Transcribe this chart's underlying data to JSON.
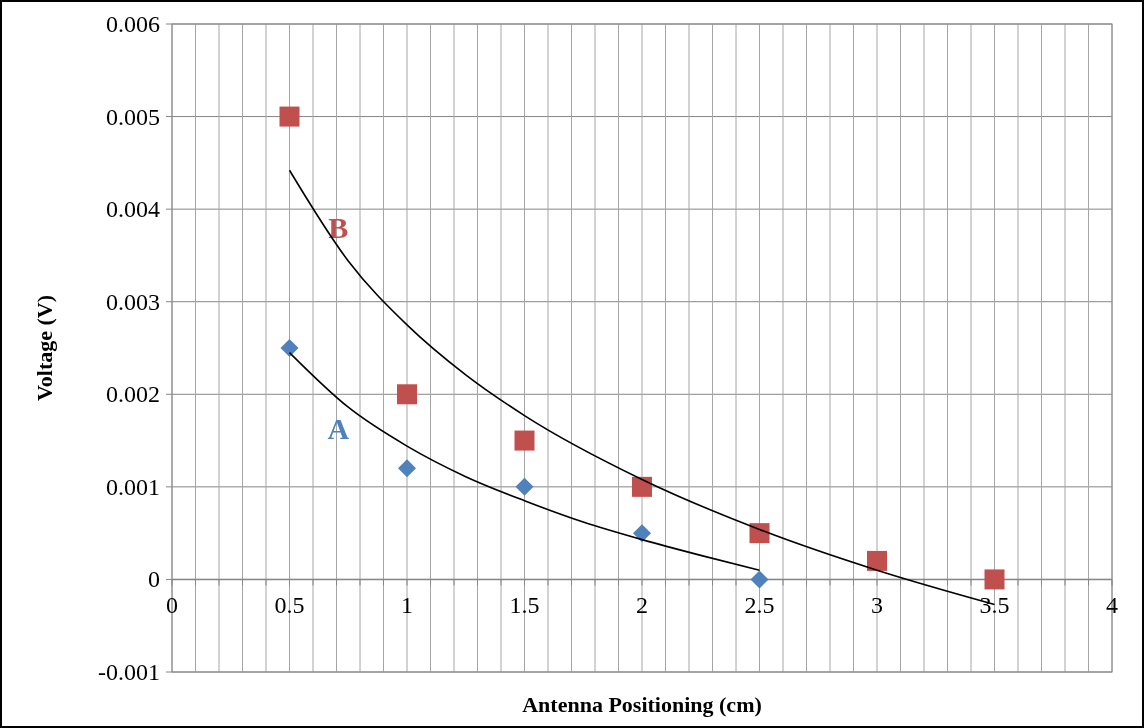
{
  "chart_data": {
    "type": "scatter",
    "xlabel": "Antenna Positioning (cm)",
    "ylabel": "Voltage (V)",
    "xlim": [
      0,
      4
    ],
    "ylim": [
      -0.001,
      0.006
    ],
    "xticks": [
      0,
      {
        "value": 0.1,
        "label": null
      },
      {
        "value": 0.2,
        "label": null
      },
      {
        "value": 0.3,
        "label": null
      },
      {
        "value": 0.4,
        "label": null
      },
      0.5,
      {
        "value": 0.6,
        "label": null
      },
      {
        "value": 0.7,
        "label": null
      },
      {
        "value": 0.8,
        "label": null
      },
      {
        "value": 0.9,
        "label": null
      },
      1,
      {
        "value": 1.1,
        "label": null
      },
      {
        "value": 1.2,
        "label": null
      },
      {
        "value": 1.3,
        "label": null
      },
      {
        "value": 1.4,
        "label": null
      },
      1.5,
      {
        "value": 1.6,
        "label": null
      },
      {
        "value": 1.7,
        "label": null
      },
      {
        "value": 1.8,
        "label": null
      },
      {
        "value": 1.9,
        "label": null
      },
      2,
      {
        "value": 2.1,
        "label": null
      },
      {
        "value": 2.2,
        "label": null
      },
      {
        "value": 2.3,
        "label": null
      },
      {
        "value": 2.4,
        "label": null
      },
      2.5,
      {
        "value": 2.6,
        "label": null
      },
      {
        "value": 2.7,
        "label": null
      },
      {
        "value": 2.8,
        "label": null
      },
      {
        "value": 2.9,
        "label": null
      },
      3,
      {
        "value": 3.1,
        "label": null
      },
      {
        "value": 3.2,
        "label": null
      },
      {
        "value": 3.3,
        "label": null
      },
      {
        "value": 3.4,
        "label": null
      },
      3.5,
      {
        "value": 3.6,
        "label": null
      },
      {
        "value": 3.7,
        "label": null
      },
      {
        "value": 3.8,
        "label": null
      },
      {
        "value": 3.9,
        "label": null
      },
      4
    ],
    "yticks": [
      -0.001,
      0,
      0.001,
      0.002,
      0.003,
      0.004,
      0.005,
      0.006
    ],
    "grid": true,
    "series": [
      {
        "name": "A",
        "marker": "diamond",
        "color": "#4f81bd",
        "x": [
          0.5,
          1,
          1.5,
          2,
          2.5
        ],
        "values": [
          0.0025,
          0.0012,
          0.001,
          0.0005,
          0
        ]
      },
      {
        "name": "B",
        "marker": "square",
        "color": "#c0504d",
        "x": [
          0.5,
          1,
          1.5,
          2,
          2.5,
          3,
          3.5
        ],
        "values": [
          0.005,
          0.002,
          0.0015,
          0.001,
          0.0005,
          0.0002,
          0
        ]
      },
      {
        "type": "line",
        "color": "#000000",
        "x": [
          0.5,
          0.75,
          1,
          1.25,
          1.5,
          1.75,
          2,
          2.25,
          2.5
        ],
        "values": [
          0.00245,
          0.00186,
          0.00144,
          0.00111,
          0.00085,
          0.00062,
          0.00043,
          0.00026,
          0.0001
        ]
      },
      {
        "type": "line",
        "color": "#000000",
        "x": [
          0.5,
          0.75,
          1,
          1.25,
          1.5,
          2,
          2.5,
          3,
          3.5
        ],
        "values": [
          0.00442,
          0.00344,
          0.00275,
          0.00221,
          0.00177,
          0.00108,
          0.00054,
          0.0001,
          -0.00027
        ]
      }
    ]
  }
}
